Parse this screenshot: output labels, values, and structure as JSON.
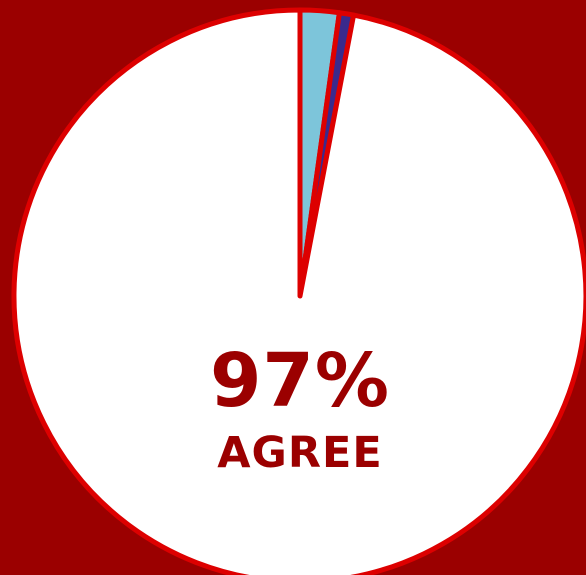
{
  "chart_data": {
    "type": "pie",
    "title": "",
    "slices": [
      {
        "label": "",
        "value": 97,
        "color": "#ffffff"
      },
      {
        "label": "",
        "value": 2.2,
        "color": "#7dc5da"
      },
      {
        "label": "",
        "value": 0.8,
        "color": "#3a2a8c"
      }
    ],
    "colors": {
      "background": "#9b0000",
      "outline": "#dd0000",
      "label": "#9b0000"
    }
  },
  "headline": {
    "percent": "97%",
    "word": "AGREE"
  }
}
